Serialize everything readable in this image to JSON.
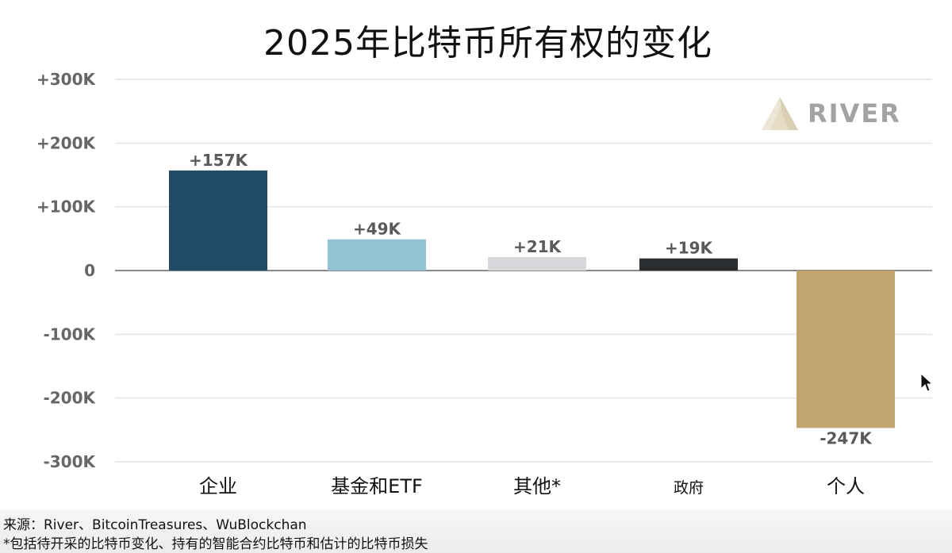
{
  "chart_data": {
    "type": "bar",
    "title": "2025年比特币所有权的变化",
    "categories": [
      "企业",
      "基金和ETF",
      "其他*",
      "政府",
      "个人"
    ],
    "values": [
      157000,
      49000,
      21000,
      19000,
      -247000
    ],
    "data_labels": [
      "+157K",
      "+49K",
      "+21K",
      "+19K",
      "-247K"
    ],
    "colors": [
      "#204b66",
      "#93c2d5",
      "#d6d8dc",
      "#2b2e31",
      "#c2a56e"
    ],
    "ylim": [
      -300000,
      300000
    ],
    "yticks": [
      300000,
      200000,
      100000,
      0,
      -100000,
      -200000,
      -300000
    ],
    "ytick_labels": [
      "+300K",
      "+200K",
      "+100K",
      "0",
      "-100K",
      "-200K",
      "-300K"
    ],
    "grid": true,
    "legend": "none",
    "xlabel": "",
    "ylabel": ""
  },
  "brand": {
    "name": "RIVER",
    "logo_icon": "river-mountain-icon",
    "color": "#a3a3a3"
  },
  "footer": {
    "source": "来源：River、BitcoinTreasures、WuBlockchan",
    "note": "*包括待开采的比特币变化、持有的智能合约比特币和估计的比特币损失"
  },
  "cursor_icon": "mouse-pointer-icon"
}
